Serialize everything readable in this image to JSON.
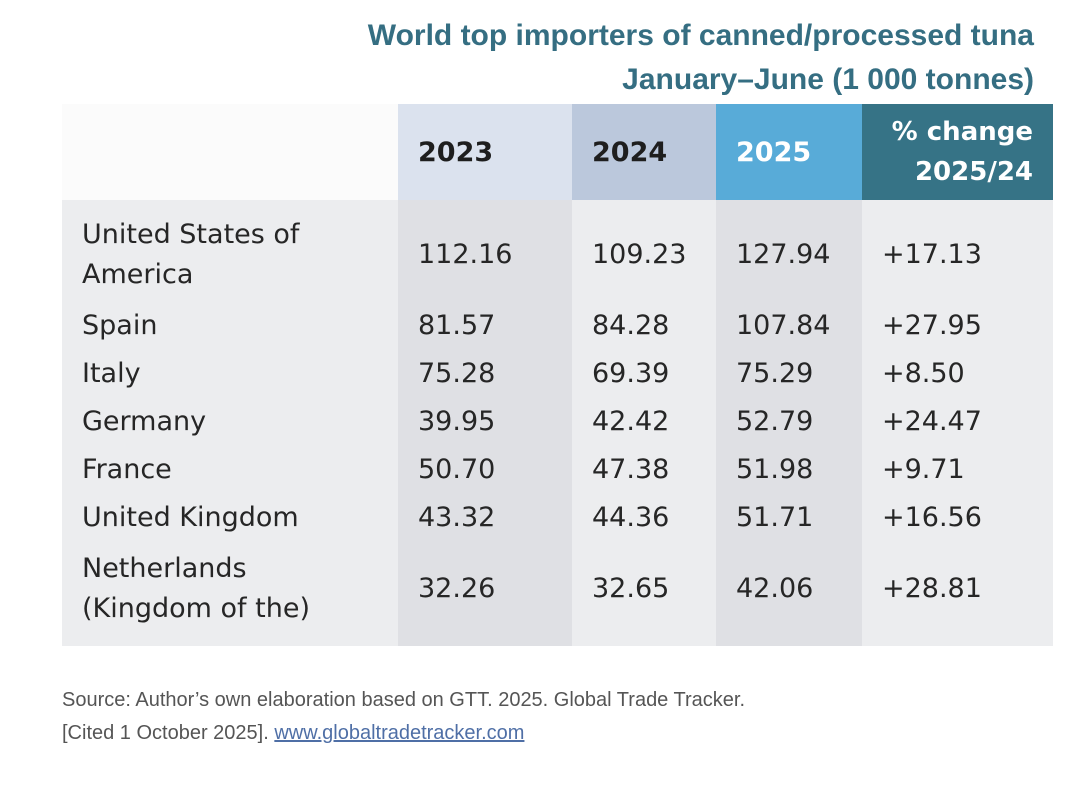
{
  "title": {
    "line1": "World top importers of canned/processed tuna",
    "line2": "January–June (1 000 tonnes)"
  },
  "table": {
    "headers": [
      "",
      "2023",
      "2024",
      "2025",
      "% change",
      "2025/24"
    ],
    "header_colors": {
      "col2023": "#dbe2ee",
      "col2024": "#bbc8dc",
      "col2025": "#58abd8",
      "change": "#367386"
    },
    "rows": [
      {
        "country_line1": "United States of",
        "country_line2": "America",
        "v2023": "112.16",
        "v2024": "109.23",
        "v2025": "127.94",
        "change": "+17.13"
      },
      {
        "country_line1": "Spain",
        "country_line2": "",
        "v2023": "81.57",
        "v2024": "84.28",
        "v2025": "107.84",
        "change": "+27.95"
      },
      {
        "country_line1": "Italy",
        "country_line2": "",
        "v2023": "75.28",
        "v2024": "69.39",
        "v2025": "75.29",
        "change": "+8.50"
      },
      {
        "country_line1": "Germany",
        "country_line2": "",
        "v2023": "39.95",
        "v2024": "42.42",
        "v2025": "52.79",
        "change": "+24.47"
      },
      {
        "country_line1": "France",
        "country_line2": "",
        "v2023": "50.70",
        "v2024": "47.38",
        "v2025": "51.98",
        "change": "+9.71"
      },
      {
        "country_line1": "United Kingdom",
        "country_line2": "",
        "v2023": "43.32",
        "v2024": "44.36",
        "v2025": "51.71",
        "change": "+16.56"
      },
      {
        "country_line1": "Netherlands",
        "country_line2": "(Kingdom of the)",
        "v2023": "32.26",
        "v2024": "32.65",
        "v2025": "42.06",
        "change": "+28.81"
      }
    ]
  },
  "source": {
    "text": "Source: Author’s own elaboration based on GTT. 2025. Global Trade Tracker.",
    "cited": "[Cited 1 October 2025]. ",
    "link": "www.globaltradetracker.com"
  },
  "colors": {
    "title": "#356e82",
    "link": "#4f6fa6"
  }
}
